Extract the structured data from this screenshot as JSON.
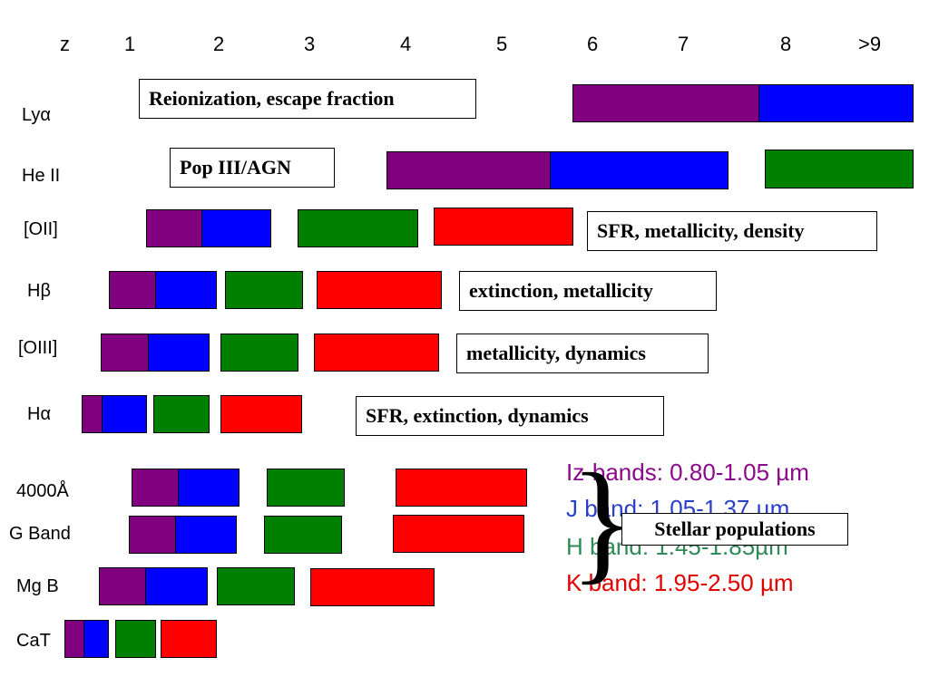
{
  "z_axis": {
    "label": "z",
    "ticks": [
      "1",
      "2",
      "3",
      "4",
      "5",
      "6",
      "7",
      "8",
      ">9"
    ]
  },
  "rows": [
    {
      "label": "Lyα"
    },
    {
      "label": "He II"
    },
    {
      "label": "[OII]"
    },
    {
      "label": "Hβ"
    },
    {
      "label": "[OIII]"
    },
    {
      "label": "Hα"
    },
    {
      "label": "4000Å"
    },
    {
      "label": "G Band"
    },
    {
      "label": "Mg B"
    },
    {
      "label": "CaT"
    }
  ],
  "notes": {
    "lya": "Reionization, escape fraction",
    "heii": "Pop III/AGN",
    "oii": "SFR, metallicity, density",
    "hbeta": "extinction, metallicity",
    "oiii": "metallicity, dynamics",
    "halpha": "SFR, extinction, dynamics",
    "stellar": "Stellar populations"
  },
  "legend": {
    "iz": "Iz-bands: 0.80-1.05 µm",
    "j": "J band:   1.05-1.37 µm",
    "h": "H band:  1.45-1.85µm",
    "k": "K band:  1.95-2.50 µm",
    "brace": "}"
  },
  "colors": {
    "iz": "#800080",
    "j": "#0000ff",
    "h": "#008000",
    "k": "#ff0000",
    "legend_iz": "#8b0a8b",
    "legend_j": "#2a3fc8",
    "legend_h": "#2e8b57",
    "legend_k": "#e00000"
  }
}
